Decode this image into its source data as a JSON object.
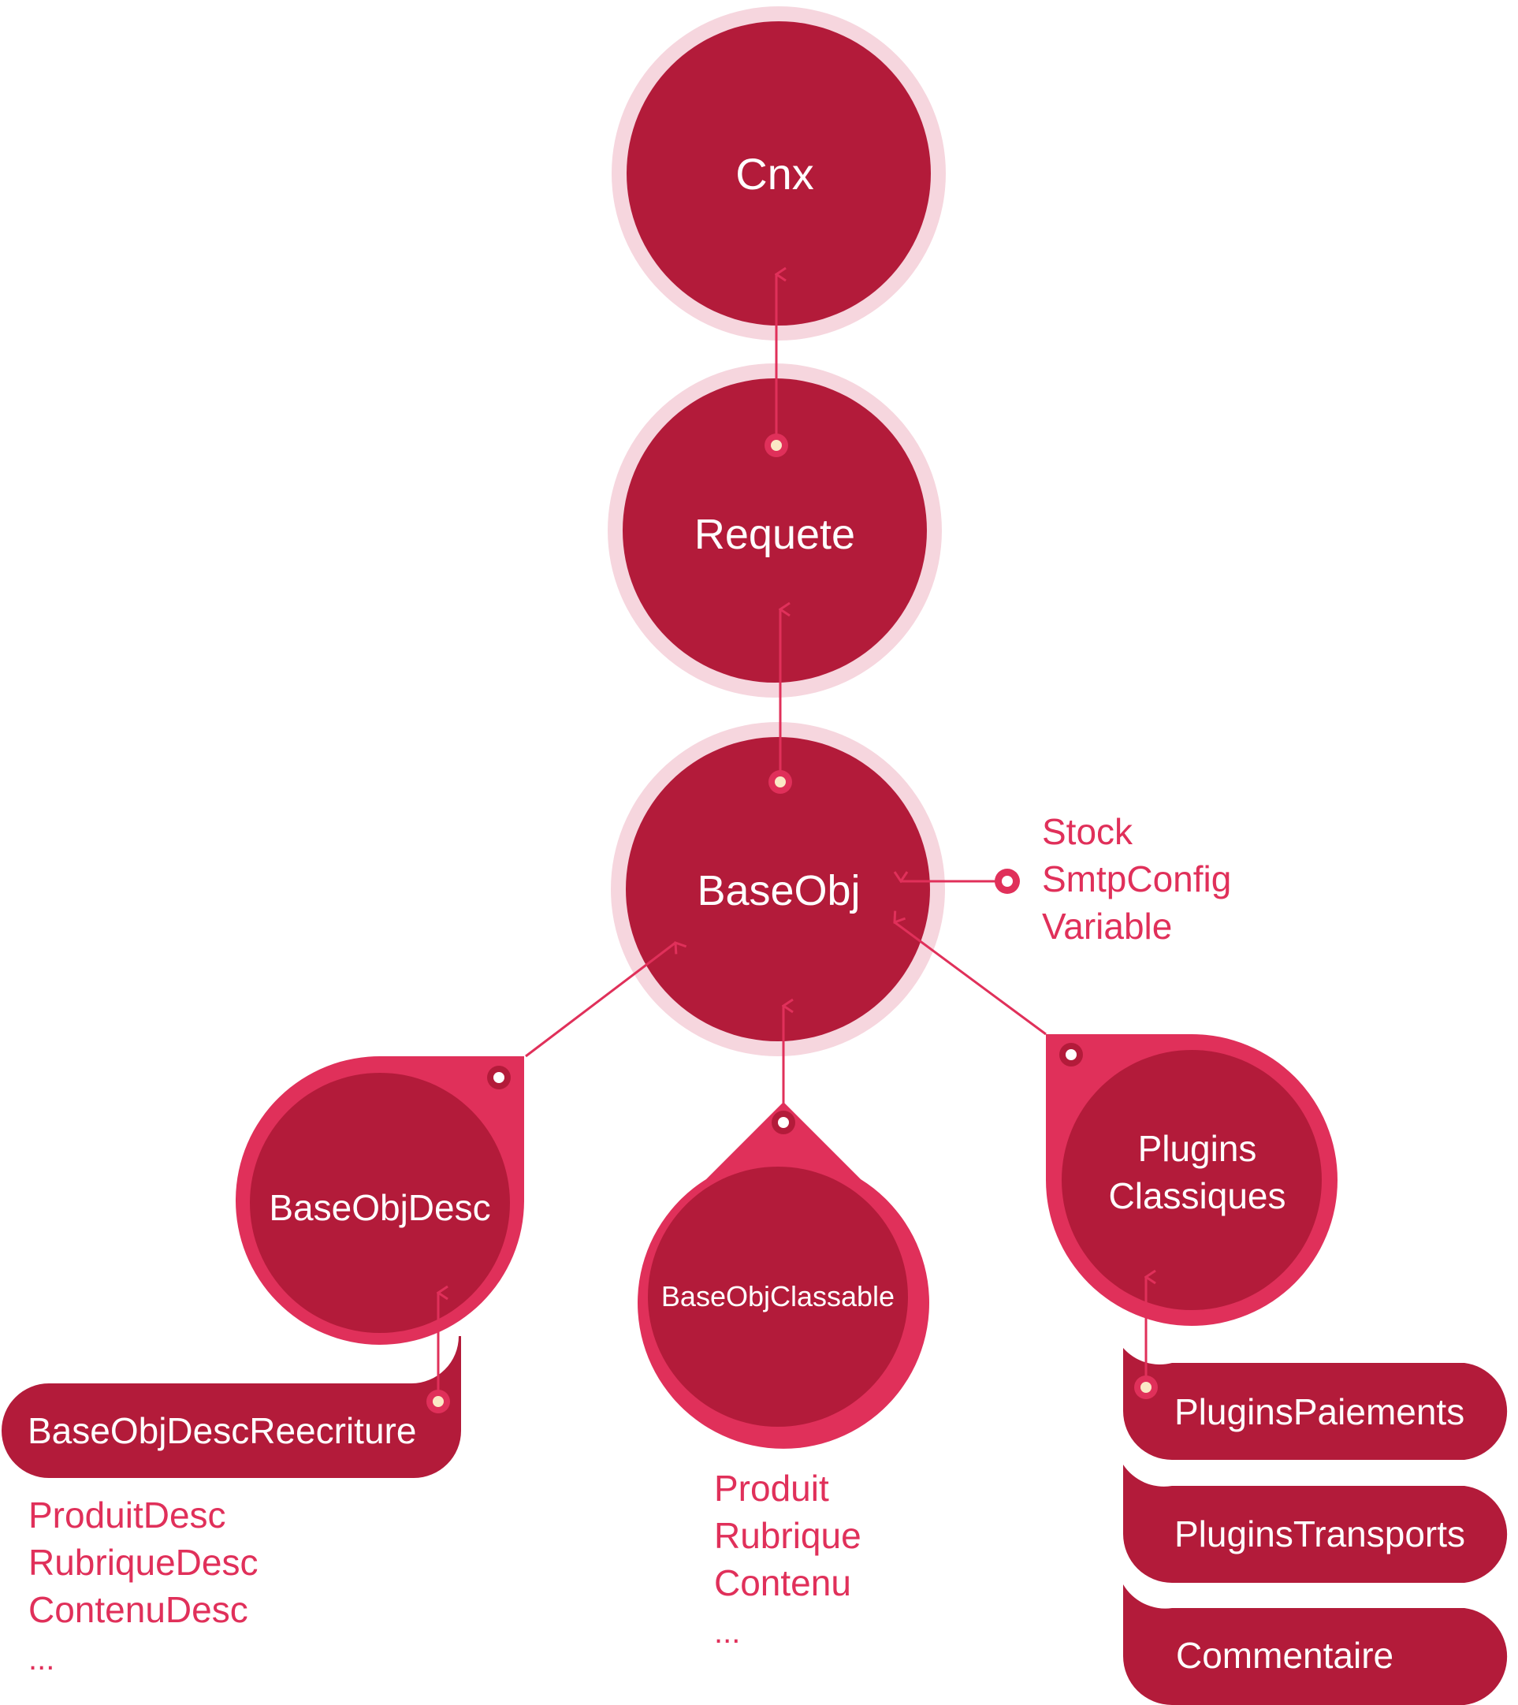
{
  "colors": {
    "node": "#b31b3a",
    "halo": "#f6d6de",
    "accent": "#e0305a",
    "dot": "#fbe9c6",
    "text_on_node": "#ffffff"
  },
  "nodes": {
    "cnx": "Cnx",
    "requete": "Requete",
    "baseobj": "BaseObj",
    "baseobjdesc": "BaseObjDesc",
    "baseobjclassable": "BaseObjClassable",
    "plugins_line1": "Plugins",
    "plugins_line2": "Classiques",
    "baseobjdescreecriture": "BaseObjDescReecriture",
    "pluginspaiements": "PluginsPaiements",
    "pluginstransports": "PluginsTransports",
    "commentaire": "Commentaire"
  },
  "lists": {
    "baseobj_side": [
      "Stock",
      "SmtpConfig",
      "Variable"
    ],
    "desc_children": [
      "ProduitDesc",
      "RubriqueDesc",
      "ContenuDesc",
      "..."
    ],
    "classable_children": [
      "Produit",
      "Rubrique",
      "Contenu",
      "..."
    ]
  }
}
